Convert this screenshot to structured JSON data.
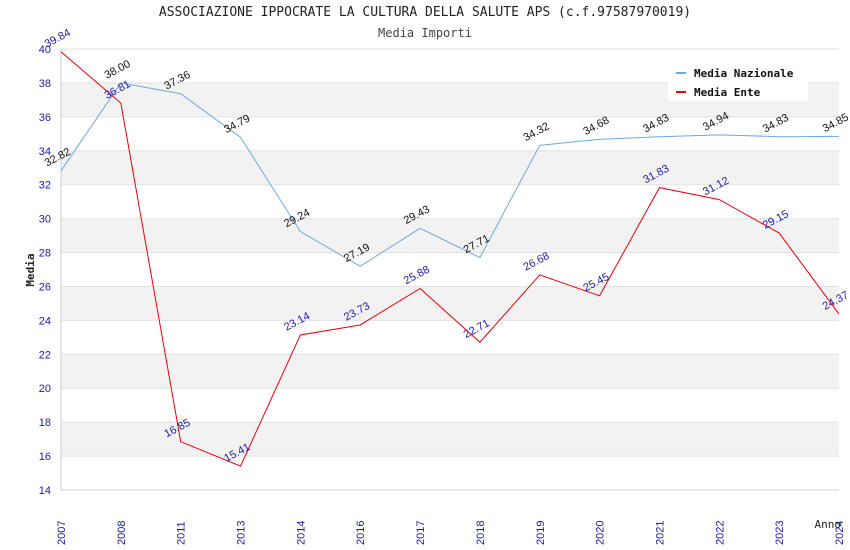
{
  "header": {
    "title": "ASSOCIAZIONE IPPOCRATE LA CULTURA DELLA SALUTE APS (c.f.97587970019)",
    "subtitle": "Media Importi"
  },
  "colors": {
    "nazionale": "#6fa8dc",
    "ente": "#e8000b",
    "tick_text": "#1a1aa8",
    "band": "#f2f2f2"
  },
  "chart_data": {
    "type": "line",
    "title": "ASSOCIAZIONE IPPOCRATE LA CULTURA DELLA SALUTE APS (c.f.97587970019)",
    "subtitle": "Media Importi",
    "xlabel": "Anno",
    "ylabel": "Media",
    "x": [
      "2007",
      "2008",
      "2011",
      "2013",
      "2014",
      "2016",
      "2017",
      "2018",
      "2019",
      "2020",
      "2021",
      "2022",
      "2023",
      "2024"
    ],
    "ylim": [
      14,
      40
    ],
    "yticks": [
      14,
      16,
      18,
      20,
      22,
      24,
      26,
      28,
      30,
      32,
      34,
      36,
      38,
      40
    ],
    "grid": "alternating horizontal bands",
    "legend": "top-right",
    "series": [
      {
        "name": "Media Nazionale",
        "color": "#6fa8dc",
        "label_color": "#111111",
        "values": [
          32.82,
          38.0,
          37.36,
          34.79,
          29.24,
          27.19,
          29.43,
          27.71,
          34.32,
          34.68,
          34.83,
          34.94,
          34.83,
          34.85
        ],
        "labels": [
          "32.82",
          "38.00",
          "37.36",
          "34.79",
          "29.24",
          "27.19",
          "29.43",
          "27.71",
          "34.32",
          "34.68",
          "34.83",
          "34.94",
          "34.83",
          "34.85"
        ]
      },
      {
        "name": "Media Ente",
        "color": "#e8000b",
        "label_color": "#1a1aa8",
        "values": [
          39.84,
          36.81,
          16.85,
          15.41,
          23.14,
          23.73,
          25.88,
          22.71,
          26.68,
          25.45,
          31.83,
          31.12,
          29.15,
          24.37
        ],
        "labels": [
          "39.84",
          "36.81",
          "16.85",
          "15.41",
          "23.14",
          "23.73",
          "25.88",
          "22.71",
          "26.68",
          "25.45",
          "31.83",
          "31.12",
          "29.15",
          "24.37"
        ]
      }
    ]
  }
}
